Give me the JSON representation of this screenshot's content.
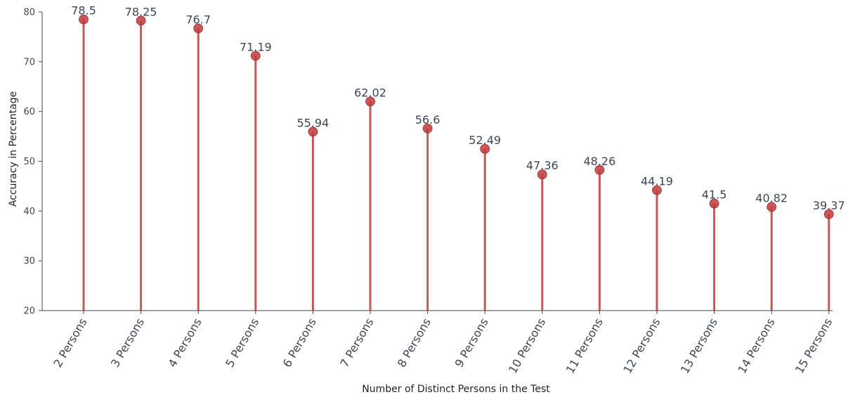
{
  "chart_data": {
    "type": "lollipop",
    "title": "",
    "xlabel": "Number of Distinct Persons in the Test",
    "ylabel": "Accuracy in Percentage",
    "ylim": [
      20,
      80
    ],
    "yticks": [
      20,
      30,
      40,
      50,
      60,
      70,
      80
    ],
    "categories": [
      "2 Persons",
      "3 Persons",
      "4 Persons",
      "5 Persons",
      "6 Persons",
      "7 Persons",
      "8 Persons",
      "9 Persons",
      "10 Persons",
      "11 Persons",
      "12 Persons",
      "13 Persons",
      "14 Persons",
      "15 Persons"
    ],
    "values": [
      78.5,
      78.25,
      76.7,
      71.19,
      55.94,
      62.02,
      56.6,
      52.49,
      47.36,
      48.26,
      44.19,
      41.5,
      40.82,
      39.37
    ],
    "data_labels": [
      "78.5",
      "78.25",
      "76.7",
      "71.19",
      "55.94",
      "62.02",
      "56.6",
      "52.49",
      "47.36",
      "48.26",
      "44.19",
      "41.5",
      "40.82",
      "39.37"
    ],
    "grid": false,
    "colors": {
      "stem": "#c0393b",
      "marker": "#c0393b",
      "axis": "#3c4654"
    }
  }
}
